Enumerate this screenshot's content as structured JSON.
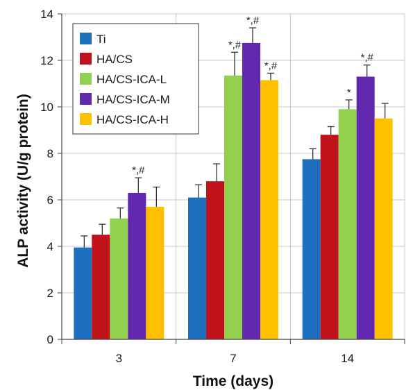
{
  "chart_data": {
    "type": "bar",
    "xlabel": "Time (days)",
    "ylabel": "ALP activity (U/g protein)",
    "ylim": [
      0,
      14
    ],
    "yticks": [
      0,
      2,
      4,
      6,
      8,
      10,
      12,
      14
    ],
    "grid": true,
    "legend_position": "top-left",
    "categories": [
      "3",
      "7",
      "14"
    ],
    "series": [
      {
        "name": "Ti",
        "color": "#1f6fbf",
        "values": [
          3.95,
          6.1,
          7.75
        ],
        "errors": [
          0.5,
          0.55,
          0.45
        ],
        "annotations": [
          "",
          "",
          ""
        ]
      },
      {
        "name": "HA/CS",
        "color": "#c0121b",
        "values": [
          4.5,
          6.8,
          8.8
        ],
        "errors": [
          0.45,
          0.75,
          0.35
        ],
        "annotations": [
          "",
          "",
          ""
        ]
      },
      {
        "name": "HA/CS-ICA-L",
        "color": "#92d050",
        "values": [
          5.2,
          11.35,
          9.9
        ],
        "errors": [
          0.45,
          1.0,
          0.4
        ],
        "annotations": [
          "",
          "*,#",
          "*"
        ]
      },
      {
        "name": "HA/CS-ICA-M",
        "color": "#6228b0",
        "values": [
          6.3,
          12.75,
          11.3
        ],
        "errors": [
          0.65,
          0.65,
          0.5
        ],
        "annotations": [
          "*,#",
          "*,#",
          "*,#"
        ]
      },
      {
        "name": "HA/CS-ICA-H",
        "color": "#ffc000",
        "values": [
          5.7,
          11.15,
          9.5
        ],
        "errors": [
          0.85,
          0.3,
          0.65
        ],
        "annotations": [
          "",
          "*,#",
          ""
        ]
      }
    ]
  }
}
